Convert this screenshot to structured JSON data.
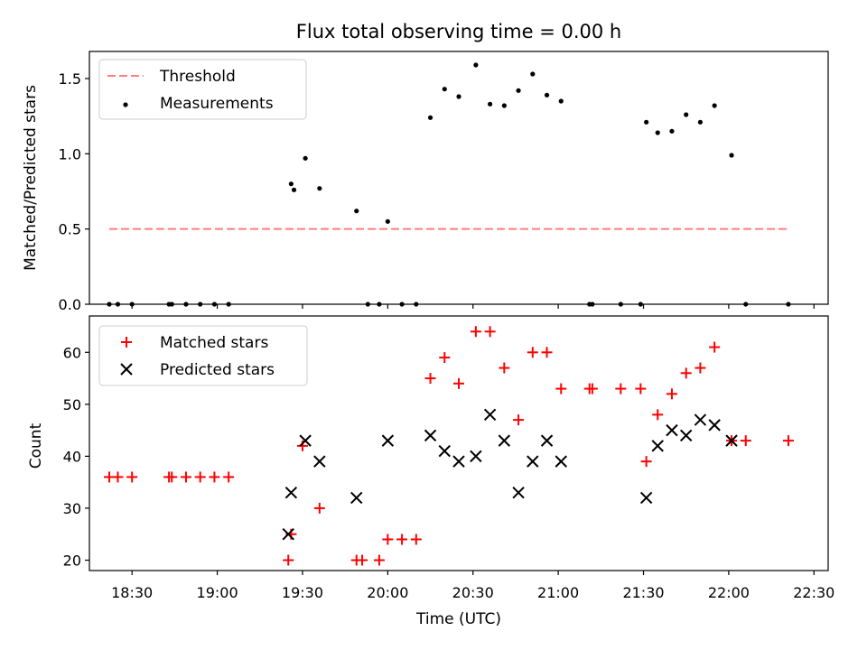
{
  "chart_data": [
    {
      "type": "scatter",
      "title": "Flux total observing time = 0.00 h",
      "xlabel": "",
      "ylabel": "Matched/Predicted stars",
      "xlim": [
        "18:15",
        "22:35"
      ],
      "ylim": [
        0,
        1.68
      ],
      "yticks": [
        0.0,
        0.5,
        1.0,
        1.5
      ],
      "ytick_labels": [
        "0.0",
        "0.5",
        "1.0",
        "1.5"
      ],
      "xticks": [
        "18:30",
        "19:00",
        "19:30",
        "20:00",
        "20:30",
        "21:00",
        "21:30",
        "22:00",
        "22:30"
      ],
      "legend": "upper-left",
      "grid": false,
      "threshold": {
        "name": "Threshold",
        "color": "#ff7f7f",
        "style": "dashed",
        "x": [
          "18:22",
          "22:21"
        ],
        "y": [
          0.5,
          0.5
        ]
      },
      "series": [
        {
          "name": "Measurements",
          "marker": "dot",
          "color": "#000000",
          "x": [
            "18:22",
            "18:25",
            "18:30",
            "18:43",
            "18:44",
            "18:49",
            "18:54",
            "18:59",
            "19:04",
            "19:26",
            "19:27",
            "19:31",
            "19:36",
            "19:49",
            "19:53",
            "20:00",
            "19:57",
            "20:05",
            "20:10",
            "20:15",
            "20:20",
            "20:25",
            "20:31",
            "20:36",
            "20:41",
            "20:46",
            "20:51",
            "20:56",
            "21:01",
            "21:11",
            "21:12",
            "21:22",
            "21:29",
            "21:31",
            "21:35",
            "21:40",
            "21:45",
            "21:50",
            "21:55",
            "22:01",
            "22:06",
            "22:21"
          ],
          "y": [
            0,
            0,
            0,
            0,
            0,
            0,
            0,
            0,
            0,
            0.8,
            0.76,
            0.97,
            0.77,
            0.62,
            0,
            0.55,
            0,
            0,
            0,
            1.24,
            1.43,
            1.38,
            1.59,
            1.33,
            1.32,
            1.42,
            1.53,
            1.39,
            1.35,
            0,
            0,
            0,
            0,
            1.21,
            1.14,
            1.15,
            1.26,
            1.21,
            1.32,
            0.99,
            0,
            0
          ]
        }
      ]
    },
    {
      "type": "scatter",
      "title": "",
      "xlabel": "Time (UTC)",
      "ylabel": "Count",
      "xlim": [
        "18:15",
        "22:35"
      ],
      "ylim": [
        18,
        67
      ],
      "yticks": [
        20,
        30,
        40,
        50,
        60
      ],
      "ytick_labels": [
        "20",
        "30",
        "40",
        "50",
        "60"
      ],
      "xticks": [
        "18:30",
        "19:00",
        "19:30",
        "20:00",
        "20:30",
        "21:00",
        "21:30",
        "22:00",
        "22:30"
      ],
      "xtick_labels": [
        "18:30",
        "19:00",
        "19:30",
        "20:00",
        "20:30",
        "21:00",
        "21:30",
        "22:00",
        "22:30"
      ],
      "legend": "upper-left",
      "grid": false,
      "series": [
        {
          "name": "Matched stars",
          "marker": "plus",
          "color": "#ff0000",
          "x": [
            "18:22",
            "18:25",
            "18:30",
            "18:43",
            "18:44",
            "18:49",
            "18:54",
            "18:59",
            "19:04",
            "19:25",
            "19:26",
            "19:30",
            "19:36",
            "19:49",
            "19:51",
            "19:57",
            "20:00",
            "20:05",
            "20:10",
            "20:15",
            "20:20",
            "20:25",
            "20:31",
            "20:36",
            "20:41",
            "20:46",
            "20:51",
            "20:56",
            "21:01",
            "21:11",
            "21:12",
            "21:22",
            "21:29",
            "21:31",
            "21:35",
            "21:40",
            "21:45",
            "21:50",
            "21:55",
            "22:01",
            "22:06",
            "22:21"
          ],
          "y": [
            36,
            36,
            36,
            36,
            36,
            36,
            36,
            36,
            36,
            20,
            25,
            42,
            30,
            20,
            20,
            20,
            24,
            24,
            24,
            55,
            59,
            54,
            64,
            64,
            57,
            47,
            60,
            60,
            53,
            53,
            53,
            53,
            53,
            39,
            48,
            52,
            56,
            57,
            61,
            43,
            43,
            43
          ]
        },
        {
          "name": "Predicted stars",
          "marker": "x",
          "color": "#000000",
          "x": [
            "19:25",
            "19:26",
            "19:31",
            "19:36",
            "19:49",
            "20:00",
            "20:15",
            "20:20",
            "20:25",
            "20:31",
            "20:36",
            "20:41",
            "20:46",
            "20:51",
            "20:56",
            "21:01",
            "21:31",
            "21:35",
            "21:40",
            "21:45",
            "21:50",
            "21:55",
            "22:01"
          ],
          "y": [
            25,
            33,
            43,
            39,
            32,
            43,
            44,
            41,
            39,
            40,
            48,
            43,
            33,
            39,
            43,
            39,
            32,
            42,
            45,
            44,
            47,
            46,
            43
          ]
        }
      ]
    }
  ]
}
